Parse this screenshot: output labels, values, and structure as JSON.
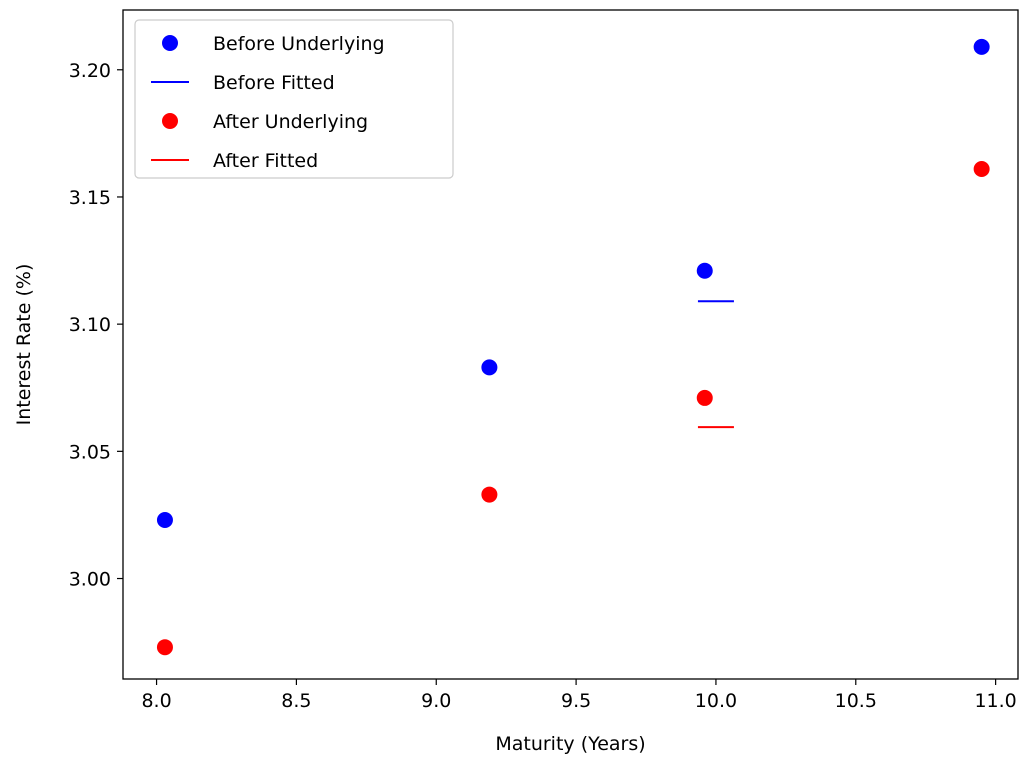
{
  "chart_data": {
    "type": "scatter",
    "title": "",
    "xlabel": "Maturity (Years)",
    "ylabel": "Interest Rate (%)",
    "xlim": [
      7.88,
      11.08
    ],
    "ylim": [
      2.9605,
      3.2235
    ],
    "xticks": [
      8.0,
      8.5,
      9.0,
      9.5,
      10.0,
      10.5,
      11.0
    ],
    "xtick_labels": [
      "8.0",
      "8.5",
      "9.0",
      "9.5",
      "10.0",
      "10.5",
      "11.0"
    ],
    "yticks": [
      3.0,
      3.05,
      3.1,
      3.15,
      3.2
    ],
    "ytick_labels": [
      "3.00",
      "3.05",
      "3.10",
      "3.15",
      "3.20"
    ],
    "grid": false,
    "legend_position": "top-left",
    "series": [
      {
        "name": "Before Underlying",
        "kind": "points",
        "color": "#0000ff",
        "points": [
          {
            "x": 8.03,
            "y": 3.023
          },
          {
            "x": 9.19,
            "y": 3.083
          },
          {
            "x": 9.96,
            "y": 3.121
          },
          {
            "x": 10.95,
            "y": 3.209
          }
        ]
      },
      {
        "name": "Before Fitted",
        "kind": "segments",
        "color": "#0000ff",
        "points": [
          {
            "x": 10.0,
            "y": 3.109
          }
        ]
      },
      {
        "name": "After Underlying",
        "kind": "points",
        "color": "#ff0000",
        "points": [
          {
            "x": 8.03,
            "y": 2.973
          },
          {
            "x": 9.19,
            "y": 3.033
          },
          {
            "x": 9.96,
            "y": 3.071
          },
          {
            "x": 10.95,
            "y": 3.161
          }
        ]
      },
      {
        "name": "After Fitted",
        "kind": "segments",
        "color": "#ff0000",
        "points": [
          {
            "x": 10.0,
            "y": 3.0595
          }
        ]
      }
    ]
  }
}
